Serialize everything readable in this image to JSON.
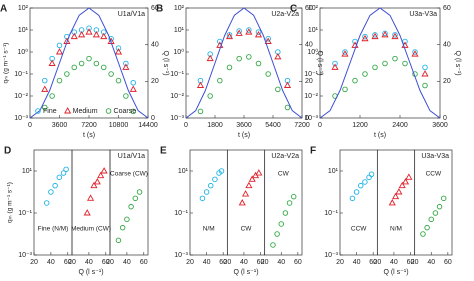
{
  "chart_data": [
    {
      "type": "scatter",
      "panel": "A",
      "title": "U1a/V1a",
      "xlabel": "t (s)",
      "ylabel": "qₘ (g m⁻¹ s⁻¹)",
      "y2label": "Q (l s⁻¹)",
      "log_y": true,
      "xlim": [
        0,
        14400
      ],
      "xticks": [
        0,
        3600,
        7200,
        10800,
        14400
      ],
      "ylim": [
        0.001,
        100
      ],
      "yticks": [
        {
          "value": 0.001,
          "label": "10⁻³"
        },
        {
          "value": 0.01,
          "label": "10⁻²"
        },
        {
          "value": 0.1,
          "label": "10⁻¹"
        },
        {
          "value": 1,
          "label": "10⁰"
        },
        {
          "value": 10,
          "label": "10¹"
        },
        {
          "value": 100,
          "label": "10²"
        }
      ],
      "y2lim": [
        0,
        60
      ],
      "y2ticks": [
        0,
        20,
        40,
        60
      ],
      "legend": "lower center",
      "series": [
        {
          "name": "Fine",
          "color": "#1fb3e6",
          "marker": "circle",
          "x": [
            1800,
            2700,
            3600,
            4500,
            5400,
            6300,
            7200,
            8100,
            9000,
            9900,
            10800,
            11700,
            12600
          ],
          "values": [
            0.05,
            0.5,
            2,
            5,
            8,
            10,
            12,
            10,
            8,
            4,
            1.5,
            0.3,
            0.04
          ]
        },
        {
          "name": "Medium",
          "color": "#e0202a",
          "marker": "triangle",
          "x": [
            1800,
            2700,
            3600,
            4500,
            5400,
            6300,
            7200,
            8100,
            9000,
            9900,
            10800,
            11700,
            12600
          ],
          "values": [
            0.02,
            0.3,
            1,
            3,
            5,
            6,
            8,
            6,
            5,
            3,
            1,
            0.2,
            0.02
          ]
        },
        {
          "name": "Coarse",
          "color": "#33a845",
          "marker": "circle",
          "x": [
            1800,
            2700,
            3600,
            4500,
            5400,
            6300,
            7200,
            8100,
            9000,
            9900,
            10800,
            11700,
            12600
          ],
          "values": [
            0.003,
            0.01,
            0.05,
            0.1,
            0.2,
            0.3,
            0.5,
            0.3,
            0.2,
            0.1,
            0.05,
            0.01,
            0.002
          ]
        },
        {
          "type": "line",
          "axis": "y2",
          "color": "#3d4fd6",
          "x": [
            0,
            1200,
            2400,
            3600,
            4800,
            6000,
            7200,
            8400,
            9600,
            10800,
            12000,
            13200,
            14400
          ],
          "values": [
            0,
            4,
            15,
            30,
            45,
            56,
            60,
            56,
            45,
            30,
            15,
            4,
            0
          ]
        }
      ]
    },
    {
      "type": "scatter",
      "panel": "B",
      "title": "U2a-V2a",
      "xlabel": "t (s)",
      "y2label": "Q (l s⁻¹)",
      "log_y": true,
      "xlim": [
        0,
        7200
      ],
      "xticks": [
        0,
        1800,
        3600,
        5400,
        7200
      ],
      "ylim": [
        0.001,
        100
      ],
      "yticks": [
        {
          "value": 0.001,
          "label": "10⁻³"
        },
        {
          "value": 0.01,
          "label": "10⁻²"
        },
        {
          "value": 0.1,
          "label": "10⁻¹"
        },
        {
          "value": 1,
          "label": "10⁰"
        },
        {
          "value": 10,
          "label": "10¹"
        },
        {
          "value": 100,
          "label": "10²"
        }
      ],
      "y2lim": [
        0,
        60
      ],
      "y2ticks": [
        0,
        20,
        40,
        60
      ],
      "series": [
        {
          "color": "#1fb3e6",
          "marker": "circle",
          "x": [
            900,
            1500,
            2100,
            2700,
            3300,
            3900,
            4500,
            5100,
            5700,
            6300
          ],
          "values": [
            0.05,
            0.8,
            3,
            6,
            9,
            10,
            8,
            4,
            1,
            0.05
          ]
        },
        {
          "color": "#e0202a",
          "marker": "triangle",
          "x": [
            900,
            1500,
            2100,
            2700,
            3300,
            3900,
            4500,
            5100,
            5700,
            6300
          ],
          "values": [
            0.03,
            0.5,
            2,
            5,
            7,
            8,
            6,
            3,
            0.6,
            0.03
          ]
        },
        {
          "color": "#33a845",
          "marker": "circle",
          "x": [
            900,
            1500,
            2100,
            2700,
            3300,
            3900,
            4500,
            5100,
            5700,
            6300
          ],
          "values": [
            0.002,
            0.01,
            0.05,
            0.2,
            0.5,
            0.6,
            0.3,
            0.1,
            0.02,
            0.003
          ]
        },
        {
          "type": "line",
          "axis": "y2",
          "color": "#3d4fd6",
          "x": [
            0,
            600,
            1200,
            1800,
            2400,
            3000,
            3600,
            4200,
            4800,
            5400,
            6000,
            6600,
            7200
          ],
          "values": [
            0,
            4,
            15,
            30,
            45,
            56,
            60,
            56,
            45,
            30,
            15,
            4,
            0
          ]
        }
      ]
    },
    {
      "type": "scatter",
      "panel": "C",
      "title": "U3a-V3a",
      "xlabel": "t (s)",
      "y2label": "Q (l s⁻¹)",
      "log_y": true,
      "xlim": [
        0,
        3600
      ],
      "xticks": [
        0,
        1200,
        2400,
        3600
      ],
      "ylim": [
        0.001,
        100
      ],
      "yticks": [
        {
          "value": 0.001,
          "label": "10⁻³"
        },
        {
          "value": 0.01,
          "label": "10⁻²"
        },
        {
          "value": 0.1,
          "label": "10⁻¹"
        },
        {
          "value": 1,
          "label": "10⁰"
        },
        {
          "value": 10,
          "label": "10¹"
        },
        {
          "value": 100,
          "label": "10²"
        }
      ],
      "y2lim": [
        0,
        60
      ],
      "y2ticks": [
        0,
        20,
        40,
        60
      ],
      "series": [
        {
          "color": "#1fb3e6",
          "marker": "circle",
          "x": [
            450,
            750,
            1050,
            1350,
            1650,
            1950,
            2250,
            2550,
            2850,
            3150
          ],
          "values": [
            0.3,
            1,
            3,
            5,
            6,
            7,
            6,
            3,
            1,
            0.2
          ]
        },
        {
          "color": "#e0202a",
          "marker": "triangle",
          "x": [
            450,
            750,
            1050,
            1350,
            1650,
            1950,
            2250,
            2550,
            2850,
            3150
          ],
          "values": [
            0.2,
            0.8,
            2,
            4,
            5,
            6,
            5,
            2,
            0.8,
            0.1
          ]
        },
        {
          "color": "#33a845",
          "marker": "circle",
          "x": [
            450,
            750,
            1050,
            1350,
            1650,
            1950,
            2250,
            2550,
            2850,
            3150
          ],
          "values": [
            0.01,
            0.02,
            0.05,
            0.1,
            0.2,
            0.3,
            0.5,
            0.3,
            0.1,
            0.03
          ]
        },
        {
          "type": "line",
          "axis": "y2",
          "color": "#3d4fd6",
          "x": [
            0,
            300,
            600,
            900,
            1200,
            1500,
            1800,
            2100,
            2400,
            2700,
            3000,
            3300,
            3600
          ],
          "values": [
            0,
            4,
            15,
            30,
            45,
            56,
            60,
            56,
            45,
            30,
            15,
            4,
            0
          ]
        }
      ]
    },
    {
      "type": "multi-scatter",
      "panel": "D",
      "title": "U1a/V1a",
      "xlabel": "Q (l s⁻¹)",
      "ylabel": "qₘ (g m⁻¹ s⁻¹)",
      "log_y": true,
      "ylim": [
        0.001,
        100
      ],
      "yticks": [
        {
          "value": 0.001,
          "label": "10⁻³"
        },
        {
          "value": 0.1,
          "label": "10⁻¹"
        },
        {
          "value": 10,
          "label": "10¹"
        }
      ],
      "subplots": [
        {
          "label": "Fine (N/M)",
          "label_corner": "bottom",
          "color": "#1fb3e6",
          "marker": "circle",
          "xlim": [
            20,
            65
          ],
          "xticks": [
            20,
            40,
            60
          ],
          "x": [
            35,
            40,
            45,
            50,
            55,
            58
          ],
          "values": [
            0.3,
            1,
            2,
            5,
            8,
            12
          ]
        },
        {
          "label": "Medium (CW)",
          "label_corner": "bottom",
          "color": "#e0202a",
          "marker": "triangle",
          "xlim": [
            20,
            65
          ],
          "xticks": [
            20,
            40,
            60
          ],
          "x": [
            38,
            42,
            46,
            50,
            54,
            58
          ],
          "values": [
            0.1,
            0.5,
            2,
            3,
            6,
            10
          ]
        },
        {
          "label": "Coarse (CW)",
          "label_corner": "top",
          "color": "#33a845",
          "marker": "circle",
          "xlim": [
            20,
            65
          ],
          "xticks": [
            20,
            40,
            60
          ],
          "x": [
            30,
            35,
            40,
            45,
            50,
            55
          ],
          "values": [
            0.005,
            0.02,
            0.05,
            0.2,
            0.5,
            1
          ]
        }
      ]
    },
    {
      "type": "multi-scatter",
      "panel": "E",
      "title": "U2a-V2a",
      "xlabel": "Q (l s⁻¹)",
      "log_y": true,
      "ylim": [
        0.001,
        100
      ],
      "yticks": [
        {
          "value": 0.001,
          "label": "10⁻³"
        },
        {
          "value": 0.1,
          "label": "10⁻¹"
        },
        {
          "value": 10,
          "label": "10¹"
        }
      ],
      "subplots": [
        {
          "label": "N/M",
          "label_corner": "bottom",
          "color": "#1fb3e6",
          "marker": "circle",
          "xlim": [
            20,
            65
          ],
          "xticks": [
            20,
            40,
            60
          ],
          "x": [
            35,
            40,
            45,
            50,
            55,
            58
          ],
          "values": [
            0.5,
            1,
            2,
            4,
            8,
            10
          ]
        },
        {
          "label": "CW",
          "label_corner": "bottom",
          "color": "#e0202a",
          "marker": "triangle",
          "xlim": [
            20,
            65
          ],
          "xticks": [
            20,
            40,
            60
          ],
          "x": [
            38,
            42,
            46,
            50,
            54,
            58
          ],
          "values": [
            0.3,
            0.8,
            2,
            4,
            6,
            8
          ]
        },
        {
          "label": "CW",
          "label_corner": "top",
          "color": "#33a845",
          "marker": "circle",
          "xlim": [
            20,
            65
          ],
          "xticks": [
            20,
            40,
            60
          ],
          "x": [
            30,
            35,
            40,
            45,
            50,
            55
          ],
          "values": [
            0.003,
            0.01,
            0.03,
            0.1,
            0.3,
            0.6
          ]
        }
      ]
    },
    {
      "type": "multi-scatter",
      "panel": "F",
      "title": "U3a-V3a",
      "xlabel": "Q (l s⁻¹)",
      "log_y": true,
      "ylim": [
        0.001,
        100
      ],
      "yticks": [
        {
          "value": 0.001,
          "label": "10⁻³"
        },
        {
          "value": 0.1,
          "label": "10⁻¹"
        },
        {
          "value": 10,
          "label": "10¹"
        }
      ],
      "subplots": [
        {
          "label": "CCW",
          "label_corner": "bottom",
          "color": "#1fb3e6",
          "marker": "circle",
          "xlim": [
            20,
            65
          ],
          "xticks": [
            20,
            40,
            60
          ],
          "x": [
            35,
            40,
            45,
            50,
            55,
            58
          ],
          "values": [
            0.5,
            1,
            2,
            3,
            5,
            7
          ]
        },
        {
          "label": "N/M",
          "label_corner": "bottom",
          "color": "#e0202a",
          "marker": "triangle",
          "xlim": [
            20,
            65
          ],
          "xticks": [
            20,
            40,
            60
          ],
          "x": [
            38,
            42,
            46,
            50,
            54,
            58
          ],
          "values": [
            0.3,
            0.6,
            1,
            2,
            3,
            5
          ]
        },
        {
          "label": "CCW",
          "label_corner": "top",
          "color": "#33a845",
          "marker": "circle",
          "xlim": [
            20,
            65
          ],
          "xticks": [
            20,
            40,
            60
          ],
          "x": [
            30,
            35,
            40,
            45,
            50,
            55
          ],
          "values": [
            0.01,
            0.02,
            0.05,
            0.1,
            0.2,
            0.5
          ]
        }
      ]
    }
  ]
}
